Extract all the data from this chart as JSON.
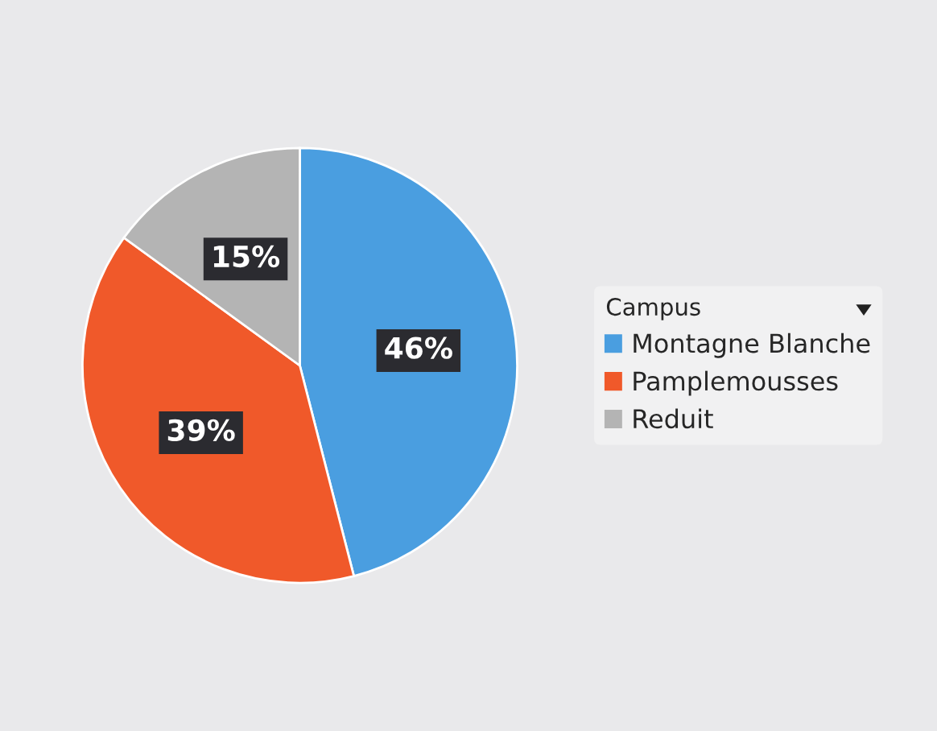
{
  "chart_data": {
    "type": "pie",
    "categories": [
      "Montagne Blanche",
      "Pamplemousses",
      "Reduit"
    ],
    "values": [
      46,
      39,
      15
    ],
    "colors": [
      "#4a9ee0",
      "#f0592a",
      "#b4b4b4"
    ],
    "value_labels": [
      "46%",
      "39%",
      "15%"
    ],
    "legend_title": "Campus",
    "legend": "right"
  }
}
